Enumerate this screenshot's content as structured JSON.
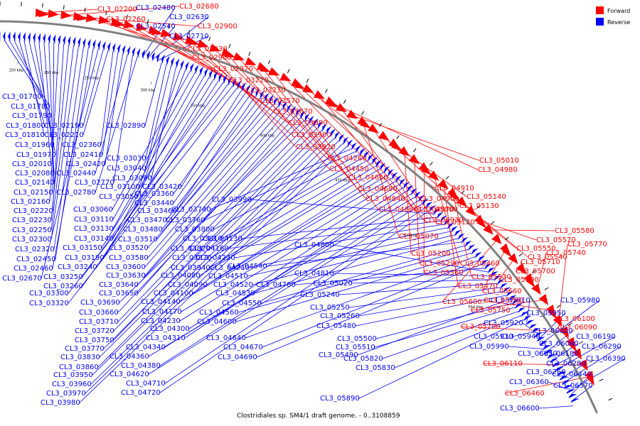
{
  "legend": {
    "forward": {
      "label": "Forward",
      "color": "#ff0000"
    },
    "reverse": {
      "label": "Reverse",
      "color": "#0000ff"
    }
  },
  "caption": "Clostridiales sp. SM4/1 draft genome. - 0..3108859",
  "backbone_color": "#808080",
  "scale_ticks": [
    "150 kbp",
    "200 kbp",
    "250 kbp",
    "300 kbp",
    "350 kbp",
    "400 kbp",
    "450 kbp",
    "500 kbp",
    "550 kbp"
  ],
  "reverse_labels": [
    "CL3_01700",
    "CL3_01780",
    "CL3_01790",
    "CL3_01800",
    "CL3_01810",
    "CL3_01960",
    "CL3_01970",
    "CL3_02010",
    "CL3_02080",
    "CL3_02140",
    "CL3_02150",
    "CL3_02160",
    "CL3_02220",
    "CL3_02230",
    "CL3_02250",
    "CL3_02300",
    "CL3_02320",
    "CL3_02450",
    "CL3_02460",
    "CL3_02670",
    "CL3_02190",
    "CL3_02210",
    "CL3_02360",
    "CL3_02410",
    "CL3_02420",
    "CL3_02440",
    "CL3_02770",
    "CL3_02780",
    "CL3_02480",
    "CL3_02540",
    "CL3_02630",
    "CL3_02710",
    "CL3_02890",
    "CL3_03030",
    "CL3_03040",
    "CL3_03090",
    "CL3_03100",
    "CL3_03050",
    "CL3_03060",
    "CL3_03110",
    "CL3_03130",
    "CL3_03140",
    "CL3_03150",
    "CL3_03190",
    "CL3_03240",
    "CL3_03250",
    "CL3_03260",
    "CL3_03300",
    "CL3_03320",
    "CL3_03420",
    "CL3_03360",
    "CL3_03440",
    "CL3_03460",
    "CL3_03470",
    "CL3_03480",
    "CL3_03510",
    "CL3_03520",
    "CL3_03580",
    "CL3_03600",
    "CL3_03630",
    "CL3_03640",
    "CL3_03650",
    "CL3_03660",
    "CL3_03690",
    "CL3_03710",
    "CL3_03720",
    "CL3_03750",
    "CL3_03770",
    "CL3_03830",
    "CL3_03860",
    "CL3_03950",
    "CL3_03960",
    "CL3_03970",
    "CL3_03980",
    "CL3_03740",
    "CL3_03760",
    "CL3_03800",
    "CL3_03810",
    "CL3_03820",
    "CL3_03870",
    "CL3_03940",
    "CL3_04080",
    "CL3_04090",
    "CL3_04100",
    "CL3_04140",
    "CL3_04170",
    "CL3_04230",
    "CL3_04300",
    "CL3_04310",
    "CL3_04340",
    "CL3_04360",
    "CL3_04380",
    "CL3_04620",
    "CL3_04710",
    "CL3_04720",
    "CL3_03990",
    "CL3_04130",
    "CL3_04160",
    "CL3_04220",
    "CL3_04240",
    "CL3_04510",
    "CL3_04520",
    "CL3_04530",
    "CL3_04540",
    "CL3_04550",
    "CL3_04560",
    "CL3_04600",
    "CL3_04640",
    "CL3_04670",
    "CL3_04690",
    "CL3_04760",
    "CL3_04800",
    "CL3_04810",
    "CL3_05020",
    "CL3_05240",
    "CL3_05250",
    "CL3_05260",
    "CL3_05480",
    "CL3_05490",
    "CL3_05500",
    "CL3_05510",
    "CL3_05820",
    "CL3_05830",
    "CL3_05890",
    "CL3_05910",
    "CL3_05920",
    "CL3_05930",
    "CL3_05940",
    "CL3_05950",
    "CL3_05980",
    "CL3_05990",
    "CL3_06020",
    "CL3_06050",
    "CL3_06080",
    "CL3_06180",
    "CL3_06190",
    "CL3_06250",
    "CL3_06280",
    "CL3_06290",
    "CL3_06360",
    "CL3_06390",
    "CL3_06440",
    "CL3_06570",
    "CL3_06600"
  ],
  "forward_labels": [
    "CL3_02200",
    "CL3_02260",
    "CL3_02680",
    "CL3_02900",
    "CL3_02930",
    "CL3_02960",
    "CL3_02970",
    "CL3_03220",
    "CL3_03230",
    "CL3_03570",
    "CL3_03670",
    "CL3_03890",
    "CL3_03900",
    "CL3_03920",
    "CL3_04260",
    "CL3_04450",
    "CL3_04660",
    "CL3_04680",
    "CL3_04840",
    "CL3_04860",
    "CL3_04870",
    "CL3_04900",
    "CL3_04910",
    "CL3_04930",
    "CL3_04980",
    "CL3_05000",
    "CL3_05010",
    "CL3_05070",
    "CL3_05120",
    "CL3_05130",
    "CL3_05140",
    "CL3_05200",
    "CL3_05290",
    "CL3_05360",
    "CL3_05460",
    "CL3_05470",
    "CL3_05530",
    "CL3_05540",
    "CL3_05550",
    "CL3_05570",
    "CL3_05580",
    "CL3_05600",
    "CL3_05660",
    "CL3_05690",
    "CL3_05700",
    "CL3_05710",
    "CL3_05740",
    "CL3_05750",
    "CL3_05760",
    "CL3_05770",
    "CL3_05790",
    "CL3_06090",
    "CL3_06100",
    "CL3_06110",
    "CL3_06460"
  ]
}
